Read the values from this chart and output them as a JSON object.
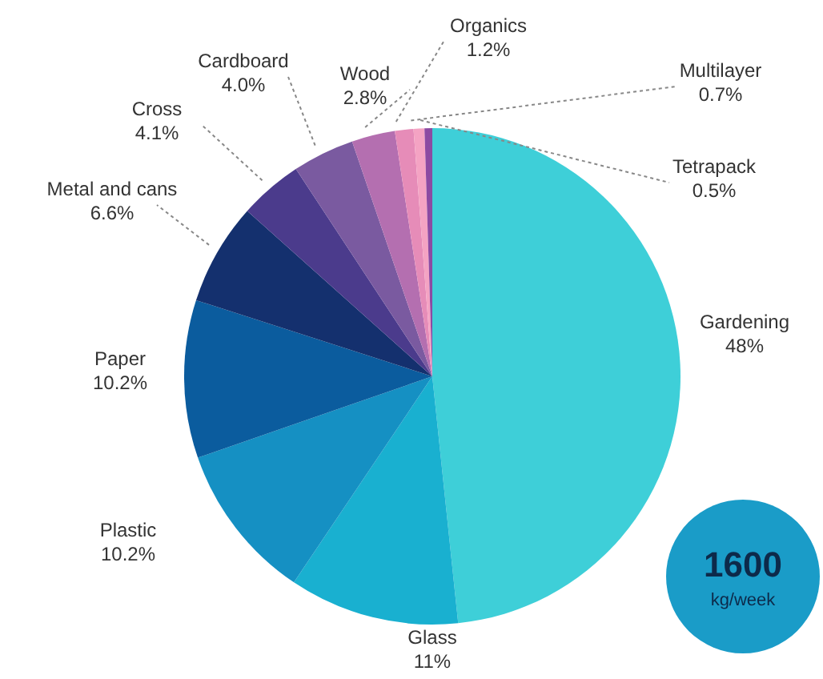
{
  "chart_data": {
    "type": "pie",
    "categories": [
      "Gardening",
      "Glass",
      "Plastic",
      "Paper",
      "Metal and cans",
      "Cross",
      "Cardboard",
      "Wood",
      "Organics",
      "Multilayer",
      "Tetrapack"
    ],
    "values": [
      48,
      11,
      10.2,
      10.2,
      6.6,
      4.1,
      4.0,
      2.8,
      1.2,
      0.7,
      0.5
    ],
    "value_labels": [
      "48%",
      "11%",
      "10.2%",
      "10.2%",
      "6.6%",
      "4.1%",
      "4.0%",
      "2.8%",
      "1.2%",
      "0.7%",
      "0.5%"
    ],
    "colors": [
      "#3ecfd8",
      "#19b0d0",
      "#1590c3",
      "#0b5c9e",
      "#14306e",
      "#4b3b8c",
      "#7a5aa0",
      "#b46fb0",
      "#e68cb8",
      "#f4a3c3",
      "#8c4aa2"
    ],
    "annotations": [
      "1600",
      "kg/week"
    ]
  }
}
